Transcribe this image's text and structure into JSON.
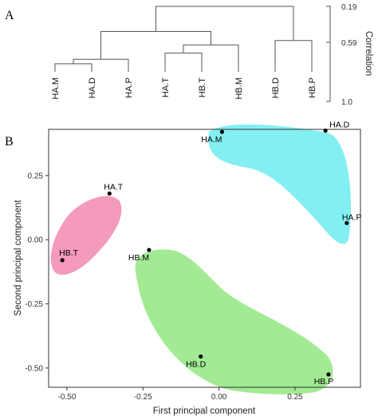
{
  "panels": [
    {
      "label": "A",
      "chart_data": {
        "type": "dendrogram",
        "leaves": [
          "HA.M",
          "HA.D",
          "HA.P",
          "HA.T",
          "HB.T",
          "HB.M",
          "HB.D",
          "HB.P"
        ],
        "merges": [
          {
            "id": "c1",
            "children": [
              "HA.M",
              "HA.D"
            ],
            "height": 0.83
          },
          {
            "id": "c2",
            "children": [
              "c1",
              "HA.P"
            ],
            "height": 0.78
          },
          {
            "id": "c3",
            "children": [
              "HA.T",
              "HB.T"
            ],
            "height": 0.71
          },
          {
            "id": "c4",
            "children": [
              "c3",
              "HB.M"
            ],
            "height": 0.62
          },
          {
            "id": "c5",
            "children": [
              "c2",
              "c4"
            ],
            "height": 0.47
          },
          {
            "id": "c6",
            "children": [
              "HB.D",
              "HB.P"
            ],
            "height": 0.57
          },
          {
            "id": "c7",
            "children": [
              "c5",
              "c6"
            ],
            "height": 0.19
          }
        ],
        "axis": {
          "title": "Correlation",
          "ticks": [
            {
              "value": 0.19,
              "label": "0.19"
            },
            {
              "value": 0.59,
              "label": "0.59"
            },
            {
              "value": 1.0,
              "label": "1.0"
            }
          ],
          "range": [
            1.0,
            0.19
          ]
        }
      }
    },
    {
      "label": "B",
      "chart_data": {
        "type": "scatter",
        "xlabel": "First principal component",
        "ylabel": "Second principal component",
        "xlim": [
          -0.56,
          0.465
        ],
        "ylim": [
          -0.575,
          0.43
        ],
        "xticks": [
          {
            "value": -0.5,
            "label": "-0.50"
          },
          {
            "value": -0.25,
            "label": "-0.25"
          },
          {
            "value": 0.0,
            "label": "0.00"
          },
          {
            "value": 0.25,
            "label": "0.25"
          }
        ],
        "yticks": [
          {
            "value": 0.25,
            "label": "0.25"
          },
          {
            "value": 0.0,
            "label": "0.00"
          },
          {
            "value": -0.25,
            "label": "-0.25"
          },
          {
            "value": -0.5,
            "label": "-0.50"
          }
        ],
        "grid": false,
        "points": [
          {
            "label": "HA.M",
            "x": 0.01,
            "y": 0.42
          },
          {
            "label": "HA.D",
            "x": 0.35,
            "y": 0.425
          },
          {
            "label": "HA.P",
            "x": 0.42,
            "y": 0.065
          },
          {
            "label": "HA.T",
            "x": -0.36,
            "y": 0.18
          },
          {
            "label": "HB.T",
            "x": -0.515,
            "y": -0.08
          },
          {
            "label": "HB.M",
            "x": -0.23,
            "y": -0.04
          },
          {
            "label": "HB.D",
            "x": -0.06,
            "y": -0.455
          },
          {
            "label": "HB.P",
            "x": 0.36,
            "y": -0.525
          }
        ],
        "groups": [
          {
            "members": [
              "HA.M",
              "HA.D",
              "HA.P"
            ],
            "color": "#84EFF2"
          },
          {
            "members": [
              "HA.T",
              "HB.T"
            ],
            "color": "#F49ABD"
          },
          {
            "members": [
              "HB.M",
              "HB.D",
              "HB.P"
            ],
            "color": "#A2EA93"
          }
        ]
      }
    }
  ]
}
